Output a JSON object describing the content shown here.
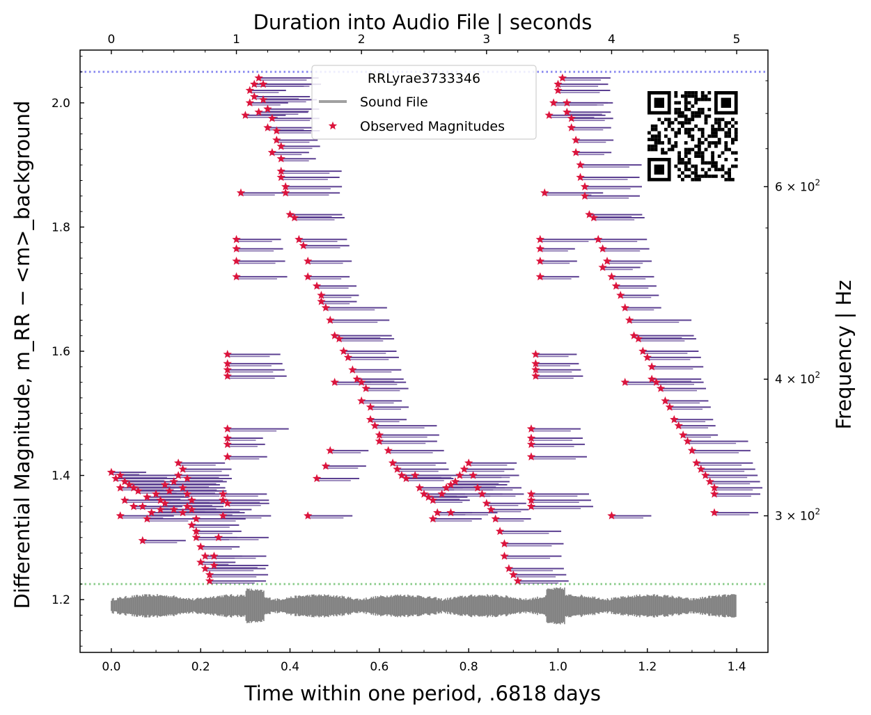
{
  "chart_data": {
    "type": "scatter",
    "title_top_axis": "Duration into Audio File | seconds",
    "xlabel": "Time within one period, .6818 days",
    "ylabel_left": "Differential Magnitude, m_RR − <m>_background",
    "ylabel_right": "Frequency | Hz",
    "xlim": [
      -0.07,
      1.47
    ],
    "ylim": [
      1.115,
      2.085
    ],
    "x_ticks": [
      "0.0",
      "0.2",
      "0.4",
      "0.6",
      "0.8",
      "1.0",
      "1.2",
      "1.4"
    ],
    "x_tick_values": [
      0.0,
      0.2,
      0.4,
      0.6,
      0.8,
      1.0,
      1.2,
      1.4
    ],
    "y_ticks": [
      "1.2",
      "1.4",
      "1.6",
      "1.8",
      "2.0"
    ],
    "y_tick_values": [
      1.2,
      1.4,
      1.6,
      1.8,
      2.0
    ],
    "top_ticks": [
      "0",
      "1",
      "2",
      "3",
      "4",
      "5"
    ],
    "top_tick_values": [
      0,
      1,
      2,
      3,
      4,
      5
    ],
    "seconds_range": [
      0,
      5.0
    ],
    "right_ticks": [
      {
        "base": "6",
        "exp": "2",
        "value": 600
      },
      {
        "base": "4",
        "exp": "2",
        "value": 400
      },
      {
        "base": "3",
        "exp": "2",
        "value": 300
      }
    ],
    "freq_range_hz": [
      225,
      800
    ],
    "reference_lines": [
      {
        "y": 2.05,
        "color": "#8c8cf0",
        "style": "dotted"
      },
      {
        "y": 1.225,
        "color": "#8fce8f",
        "style": "dotted"
      }
    ],
    "legend": {
      "title": "RRLyrae3733346",
      "placement": "top-center",
      "entries": [
        {
          "label": "Sound File",
          "marker": "line",
          "color": "#808080"
        },
        {
          "label": "Observed Magnitudes",
          "marker": "star",
          "color": "#dc143c"
        }
      ]
    },
    "marker_color": "#dc143c",
    "tone_color": "#5b3f91",
    "sound_color": "#808080",
    "sound_center_y": 1.19,
    "series": [
      {
        "name": "Observed Magnitudes",
        "points": [
          [
            0.0,
            1.405
          ],
          [
            0.01,
            1.395
          ],
          [
            0.02,
            1.4
          ],
          [
            0.03,
            1.39
          ],
          [
            0.02,
            1.38
          ],
          [
            0.04,
            1.385
          ],
          [
            0.05,
            1.38
          ],
          [
            0.06,
            1.375
          ],
          [
            0.03,
            1.36
          ],
          [
            0.05,
            1.35
          ],
          [
            0.08,
            1.365
          ],
          [
            0.07,
            1.35
          ],
          [
            0.09,
            1.34
          ],
          [
            0.1,
            1.37
          ],
          [
            0.11,
            1.36
          ],
          [
            0.12,
            1.355
          ],
          [
            0.13,
            1.375
          ],
          [
            0.12,
            1.385
          ],
          [
            0.14,
            1.39
          ],
          [
            0.15,
            1.4
          ],
          [
            0.16,
            1.41
          ],
          [
            0.15,
            1.42
          ],
          [
            0.17,
            1.395
          ],
          [
            0.16,
            1.38
          ],
          [
            0.17,
            1.37
          ],
          [
            0.18,
            1.36
          ],
          [
            0.17,
            1.35
          ],
          [
            0.16,
            1.34
          ],
          [
            0.18,
            1.345
          ],
          [
            0.14,
            1.345
          ],
          [
            0.11,
            1.345
          ],
          [
            0.02,
            1.335
          ],
          [
            0.08,
            1.33
          ],
          [
            0.19,
            1.33
          ],
          [
            0.18,
            1.32
          ],
          [
            0.19,
            1.31
          ],
          [
            0.07,
            1.295
          ],
          [
            0.19,
            1.3
          ],
          [
            0.2,
            1.285
          ],
          [
            0.21,
            1.27
          ],
          [
            0.2,
            1.26
          ],
          [
            0.21,
            1.25
          ],
          [
            0.22,
            1.24
          ],
          [
            0.22,
            1.23
          ],
          [
            0.23,
            1.255
          ],
          [
            0.23,
            1.27
          ],
          [
            0.24,
            1.3
          ],
          [
            0.25,
            1.335
          ],
          [
            0.25,
            1.36
          ],
          [
            0.25,
            1.37
          ],
          [
            0.26,
            1.355
          ],
          [
            0.26,
            1.43
          ],
          [
            0.26,
            1.45
          ],
          [
            0.26,
            1.46
          ],
          [
            0.26,
            1.475
          ],
          [
            0.26,
            1.56
          ],
          [
            0.26,
            1.57
          ],
          [
            0.26,
            1.58
          ],
          [
            0.26,
            1.595
          ],
          [
            0.28,
            1.72
          ],
          [
            0.28,
            1.745
          ],
          [
            0.28,
            1.765
          ],
          [
            0.28,
            1.78
          ],
          [
            0.29,
            1.855
          ],
          [
            0.3,
            1.98
          ],
          [
            0.31,
            2.0
          ],
          [
            0.31,
            2.02
          ],
          [
            0.32,
            2.03
          ],
          [
            0.33,
            2.04
          ],
          [
            0.34,
            2.03
          ],
          [
            0.32,
            2.01
          ],
          [
            0.34,
            2.005
          ],
          [
            0.35,
            1.99
          ],
          [
            0.33,
            1.985
          ],
          [
            0.36,
            1.975
          ],
          [
            0.35,
            1.96
          ],
          [
            0.37,
            1.955
          ],
          [
            0.37,
            1.94
          ],
          [
            0.38,
            1.93
          ],
          [
            0.36,
            1.92
          ],
          [
            0.38,
            1.91
          ],
          [
            0.38,
            1.89
          ],
          [
            0.38,
            1.88
          ],
          [
            0.39,
            1.865
          ],
          [
            0.39,
            1.855
          ],
          [
            0.4,
            1.82
          ],
          [
            0.41,
            1.815
          ],
          [
            0.42,
            1.78
          ],
          [
            0.43,
            1.77
          ],
          [
            0.44,
            1.745
          ],
          [
            0.44,
            1.72
          ],
          [
            0.46,
            1.705
          ],
          [
            0.47,
            1.69
          ],
          [
            0.47,
            1.68
          ],
          [
            0.48,
            1.67
          ],
          [
            0.49,
            1.65
          ],
          [
            0.5,
            1.625
          ],
          [
            0.51,
            1.62
          ],
          [
            0.52,
            1.6
          ],
          [
            0.53,
            1.59
          ],
          [
            0.54,
            1.57
          ],
          [
            0.55,
            1.555
          ],
          [
            0.56,
            1.55
          ],
          [
            0.57,
            1.54
          ],
          [
            0.56,
            1.52
          ],
          [
            0.58,
            1.51
          ],
          [
            0.58,
            1.49
          ],
          [
            0.59,
            1.48
          ],
          [
            0.6,
            1.465
          ],
          [
            0.6,
            1.455
          ],
          [
            0.62,
            1.44
          ],
          [
            0.63,
            1.42
          ],
          [
            0.64,
            1.41
          ],
          [
            0.65,
            1.4
          ],
          [
            0.66,
            1.395
          ],
          [
            0.68,
            1.4
          ],
          [
            0.69,
            1.38
          ],
          [
            0.7,
            1.37
          ],
          [
            0.71,
            1.365
          ],
          [
            0.72,
            1.36
          ],
          [
            0.73,
            1.34
          ],
          [
            0.74,
            1.37
          ],
          [
            0.75,
            1.38
          ],
          [
            0.76,
            1.385
          ],
          [
            0.77,
            1.39
          ],
          [
            0.78,
            1.4
          ],
          [
            0.79,
            1.41
          ],
          [
            0.8,
            1.42
          ],
          [
            0.81,
            1.4
          ],
          [
            0.82,
            1.38
          ],
          [
            0.83,
            1.37
          ],
          [
            0.84,
            1.355
          ],
          [
            0.85,
            1.345
          ],
          [
            0.86,
            1.33
          ],
          [
            0.87,
            1.31
          ],
          [
            0.88,
            1.29
          ],
          [
            0.88,
            1.27
          ],
          [
            0.89,
            1.25
          ],
          [
            0.9,
            1.24
          ],
          [
            0.91,
            1.23
          ],
          [
            0.72,
            1.33
          ],
          [
            0.76,
            1.34
          ],
          [
            0.44,
            1.335
          ],
          [
            0.46,
            1.395
          ],
          [
            0.48,
            1.415
          ],
          [
            0.49,
            1.44
          ],
          [
            0.5,
            1.55
          ],
          [
            0.94,
            1.35
          ],
          [
            0.94,
            1.36
          ],
          [
            0.94,
            1.37
          ],
          [
            0.94,
            1.43
          ],
          [
            0.94,
            1.45
          ],
          [
            0.94,
            1.46
          ],
          [
            0.94,
            1.475
          ],
          [
            0.95,
            1.56
          ],
          [
            0.95,
            1.57
          ],
          [
            0.95,
            1.58
          ],
          [
            0.95,
            1.595
          ],
          [
            0.96,
            1.72
          ],
          [
            0.96,
            1.745
          ],
          [
            0.96,
            1.765
          ],
          [
            0.96,
            1.78
          ],
          [
            0.97,
            1.855
          ],
          [
            0.98,
            1.98
          ],
          [
            0.99,
            2.0
          ],
          [
            1.0,
            2.02
          ],
          [
            1.0,
            2.03
          ],
          [
            1.01,
            2.04
          ],
          [
            1.02,
            2.0
          ],
          [
            1.02,
            1.985
          ],
          [
            1.03,
            1.975
          ],
          [
            1.03,
            1.96
          ],
          [
            1.04,
            1.94
          ],
          [
            1.04,
            1.92
          ],
          [
            1.05,
            1.9
          ],
          [
            1.05,
            1.88
          ],
          [
            1.06,
            1.865
          ],
          [
            1.06,
            1.85
          ],
          [
            1.07,
            1.82
          ],
          [
            1.08,
            1.815
          ],
          [
            1.09,
            1.78
          ],
          [
            1.1,
            1.765
          ],
          [
            1.11,
            1.745
          ],
          [
            1.12,
            1.72
          ],
          [
            1.13,
            1.705
          ],
          [
            1.14,
            1.69
          ],
          [
            1.15,
            1.67
          ],
          [
            1.16,
            1.65
          ],
          [
            1.17,
            1.625
          ],
          [
            1.18,
            1.62
          ],
          [
            1.19,
            1.6
          ],
          [
            1.2,
            1.59
          ],
          [
            1.21,
            1.575
          ],
          [
            1.21,
            1.555
          ],
          [
            1.22,
            1.55
          ],
          [
            1.23,
            1.54
          ],
          [
            1.24,
            1.52
          ],
          [
            1.25,
            1.51
          ],
          [
            1.26,
            1.49
          ],
          [
            1.27,
            1.48
          ],
          [
            1.28,
            1.465
          ],
          [
            1.29,
            1.455
          ],
          [
            1.3,
            1.44
          ],
          [
            1.31,
            1.42
          ],
          [
            1.32,
            1.41
          ],
          [
            1.33,
            1.4
          ],
          [
            1.34,
            1.39
          ],
          [
            1.35,
            1.38
          ],
          [
            1.35,
            1.37
          ],
          [
            1.35,
            1.34
          ],
          [
            1.15,
            1.55
          ],
          [
            1.12,
            1.335
          ],
          [
            1.1,
            1.735
          ]
        ]
      }
    ]
  },
  "qr": {
    "label": "qr-code"
  }
}
